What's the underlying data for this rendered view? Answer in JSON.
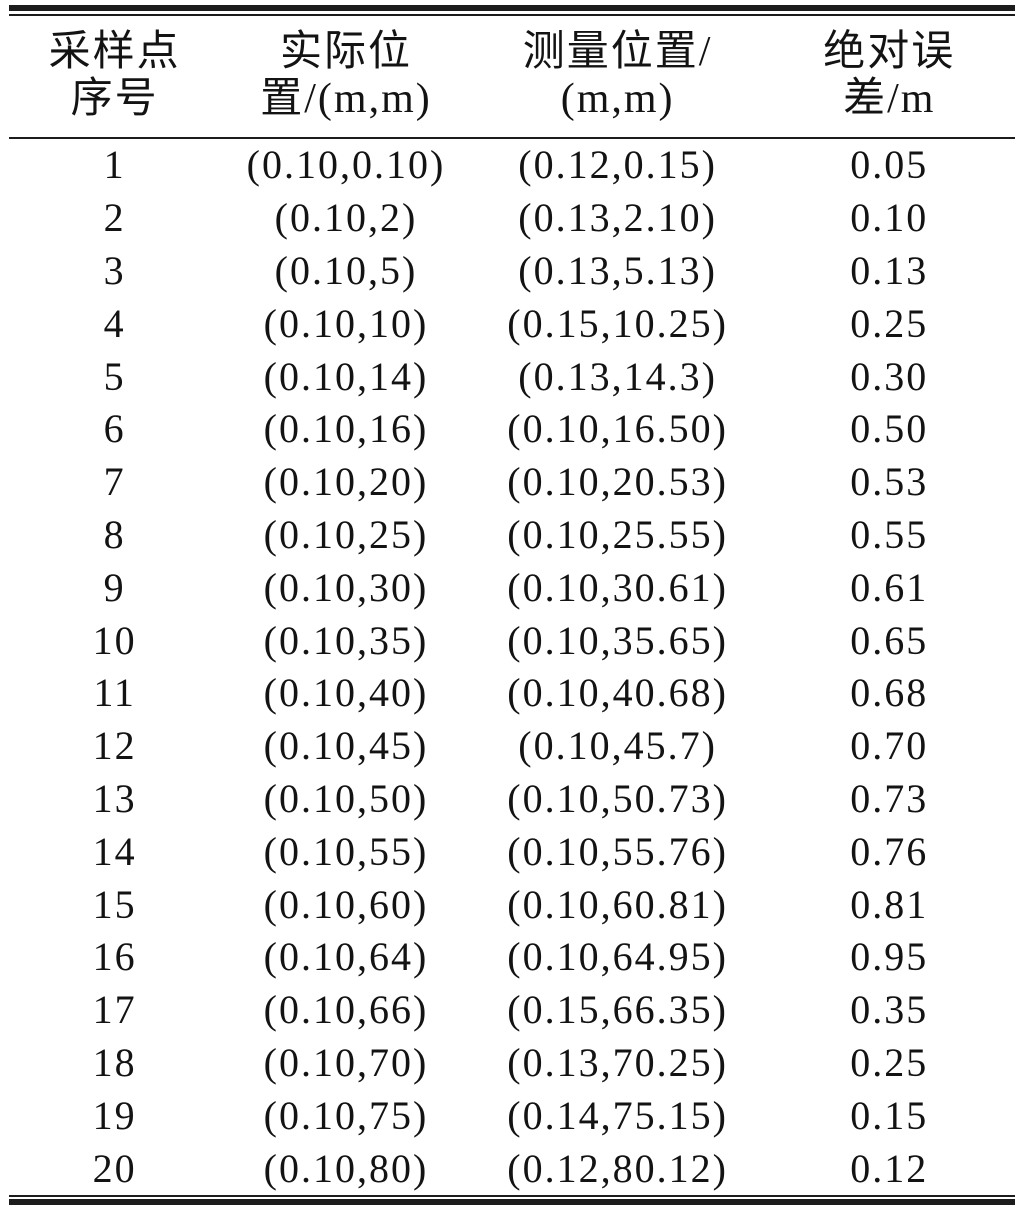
{
  "colors": {
    "background": "#ffffff",
    "text": "#131313",
    "rule": "#1c1c1c"
  },
  "table": {
    "columns": [
      {
        "line1": "采样点",
        "line2": "序号"
      },
      {
        "line1": "实际位",
        "line2": "置/(m,m)"
      },
      {
        "line1": "测量位置/",
        "line2": "(m,m)"
      },
      {
        "line1": "绝对误",
        "line2": "差/m"
      }
    ],
    "rows": [
      {
        "no": "1",
        "actual": "(0.10,0.10)",
        "measured": "(0.12,0.15)",
        "error": "0.05"
      },
      {
        "no": "2",
        "actual": "(0.10,2)",
        "measured": "(0.13,2.10)",
        "error": "0.10"
      },
      {
        "no": "3",
        "actual": "(0.10,5)",
        "measured": "(0.13,5.13)",
        "error": "0.13"
      },
      {
        "no": "4",
        "actual": "(0.10,10)",
        "measured": "(0.15,10.25)",
        "error": "0.25"
      },
      {
        "no": "5",
        "actual": "(0.10,14)",
        "measured": "(0.13,14.3)",
        "error": "0.30"
      },
      {
        "no": "6",
        "actual": "(0.10,16)",
        "measured": "(0.10,16.50)",
        "error": "0.50"
      },
      {
        "no": "7",
        "actual": "(0.10,20)",
        "measured": "(0.10,20.53)",
        "error": "0.53"
      },
      {
        "no": "8",
        "actual": "(0.10,25)",
        "measured": "(0.10,25.55)",
        "error": "0.55"
      },
      {
        "no": "9",
        "actual": "(0.10,30)",
        "measured": "(0.10,30.61)",
        "error": "0.61"
      },
      {
        "no": "10",
        "actual": "(0.10,35)",
        "measured": "(0.10,35.65)",
        "error": "0.65"
      },
      {
        "no": "11",
        "actual": "(0.10,40)",
        "measured": "(0.10,40.68)",
        "error": "0.68"
      },
      {
        "no": "12",
        "actual": "(0.10,45)",
        "measured": "(0.10,45.7)",
        "error": "0.70"
      },
      {
        "no": "13",
        "actual": "(0.10,50)",
        "measured": "(0.10,50.73)",
        "error": "0.73"
      },
      {
        "no": "14",
        "actual": "(0.10,55)",
        "measured": "(0.10,55.76)",
        "error": "0.76"
      },
      {
        "no": "15",
        "actual": "(0.10,60)",
        "measured": "(0.10,60.81)",
        "error": "0.81"
      },
      {
        "no": "16",
        "actual": "(0.10,64)",
        "measured": "(0.10,64.95)",
        "error": "0.95"
      },
      {
        "no": "17",
        "actual": "(0.10,66)",
        "measured": "(0.15,66.35)",
        "error": "0.35"
      },
      {
        "no": "18",
        "actual": "(0.10,70)",
        "measured": "(0.13,70.25)",
        "error": "0.25"
      },
      {
        "no": "19",
        "actual": "(0.10,75)",
        "measured": "(0.14,75.15)",
        "error": "0.15"
      },
      {
        "no": "20",
        "actual": "(0.10,80)",
        "measured": "(0.12,80.12)",
        "error": "0.12"
      }
    ]
  }
}
